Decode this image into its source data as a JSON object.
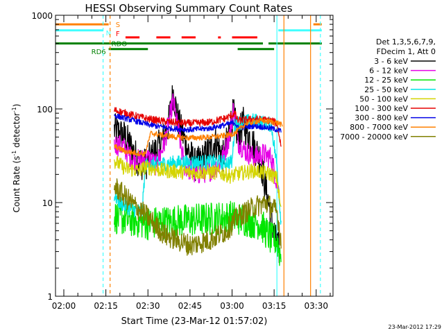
{
  "chart_data": {
    "type": "line",
    "title": "HESSI Observing Summary Count Rates",
    "ylabel_prefix": "Count Rate (s",
    "ylabel_sup1": "-1",
    "ylabel_mid": " detector",
    "ylabel_sup2": "-1",
    "ylabel_suffix": ")",
    "xlabel": "Start Time (23-Mar-12 01:57:02)",
    "footer_date": "23-Mar-2012 17:29",
    "yscale": "log",
    "ylim": [
      1,
      1000
    ],
    "xlim": [
      "01:57:02",
      "03:36:00"
    ],
    "xticks": [
      "02:00",
      "02:15",
      "02:30",
      "02:45",
      "03:00",
      "03:15",
      "03:30"
    ],
    "yticks": [
      "1",
      "10",
      "100",
      "1000"
    ],
    "legend": {
      "placement": "right",
      "header": [
        "Det 1,3,5,6,7,9,",
        "FDecim 1, Att 0"
      ],
      "entries": [
        {
          "label": "3 - 6 keV",
          "color": "#000000"
        },
        {
          "label": "6 - 12 keV",
          "color": "#e600e6"
        },
        {
          "label": "12 - 25 keV",
          "color": "#00e600"
        },
        {
          "label": "25 - 50 keV",
          "color": "#00e6e6"
        },
        {
          "label": "50 - 100 keV",
          "color": "#d4d400"
        },
        {
          "label": "100 - 300 keV",
          "color": "#e60000"
        },
        {
          "label": "300 - 800 keV",
          "color": "#0000e6"
        },
        {
          "label": "800 - 7000 keV",
          "color": "#ff8000"
        },
        {
          "label": "7000 - 20000 keV",
          "color": "#808000"
        }
      ]
    },
    "flags": [
      {
        "label": "S",
        "color": "#ff8000",
        "level": 800,
        "segments": [
          [
            "01:57:00",
            "02:16:00"
          ],
          [
            "03:29:00",
            "03:32:00"
          ]
        ]
      },
      {
        "label": "N",
        "color": "#40ffff",
        "level": 690,
        "segments": [
          [
            "01:57:00",
            "02:14:00"
          ],
          [
            "03:16:30",
            "03:32:00"
          ]
        ]
      },
      {
        "label": "F",
        "color": "#ff0000",
        "level": 580,
        "segments": [
          [
            "02:22:00",
            "02:27:00"
          ],
          [
            "02:33:00",
            "02:38:00"
          ],
          [
            "02:42:00",
            "02:47:00"
          ],
          [
            "02:55:00",
            "02:56:00"
          ],
          [
            "03:00:00",
            "03:09:00"
          ]
        ]
      },
      {
        "label": "RDO",
        "color": "#008000",
        "level": 500,
        "segments": [
          [
            "01:57:00",
            "03:11:00"
          ],
          [
            "03:13:00",
            "03:32:00"
          ]
        ]
      },
      {
        "label": "RD6",
        "color": "#008000",
        "level": 435,
        "segments": [
          [
            "02:16:00",
            "02:30:00"
          ],
          [
            "03:02:00",
            "03:15:00"
          ]
        ]
      }
    ],
    "vlines": [
      {
        "time": "02:14:00",
        "color": "#40ffff",
        "style": "dashed"
      },
      {
        "time": "02:16:30",
        "color": "#ff8000",
        "style": "dashed"
      },
      {
        "time": "03:16:00",
        "color": "#40ffff",
        "style": "solid"
      },
      {
        "time": "03:28:00",
        "color": "#ff8000",
        "style": "solid"
      },
      {
        "time": "03:31:30",
        "color": "#40ffff",
        "style": "dashed"
      },
      {
        "time": "03:18:30",
        "color": "#ff8000",
        "style": "solid"
      }
    ],
    "series": [
      {
        "name": "3 - 6 keV",
        "color": "#000000",
        "noise": 0.18,
        "points": [
          [
            "02:18:00",
            60
          ],
          [
            "02:22:00",
            50
          ],
          [
            "02:26:00",
            30
          ],
          [
            "02:28:30",
            25
          ],
          [
            "02:31:00",
            30
          ],
          [
            "02:34:00",
            40
          ],
          [
            "02:37:00",
            60
          ],
          [
            "02:39:00",
            150
          ],
          [
            "02:41:00",
            70
          ],
          [
            "02:44:00",
            38
          ],
          [
            "02:47:00",
            25
          ],
          [
            "02:50:00",
            30
          ],
          [
            "02:54:00",
            45
          ],
          [
            "02:57:00",
            30
          ],
          [
            "02:59:00",
            60
          ],
          [
            "03:00:30",
            90
          ],
          [
            "03:02:00",
            50
          ],
          [
            "03:04:00",
            70
          ],
          [
            "03:07:00",
            45
          ],
          [
            "03:10:00",
            30
          ],
          [
            "03:13:00",
            10
          ],
          [
            "03:15:30",
            4
          ],
          [
            "03:17:00",
            3
          ]
        ]
      },
      {
        "name": "6 - 12 keV",
        "color": "#e600e6",
        "noise": 0.12,
        "points": [
          [
            "02:18:00",
            42
          ],
          [
            "02:21:00",
            40
          ],
          [
            "02:24:00",
            30
          ],
          [
            "02:27:00",
            28
          ],
          [
            "02:30:00",
            30
          ],
          [
            "02:33:00",
            25
          ],
          [
            "02:36:00",
            45
          ],
          [
            "02:39:00",
            120
          ],
          [
            "02:41:00",
            55
          ],
          [
            "02:43:00",
            25
          ],
          [
            "02:47:00",
            20
          ],
          [
            "02:52:00",
            22
          ],
          [
            "02:56:00",
            26
          ],
          [
            "02:59:00",
            50
          ],
          [
            "03:00:30",
            100
          ],
          [
            "03:02:00",
            45
          ],
          [
            "03:05:00",
            35
          ],
          [
            "03:08:00",
            30
          ],
          [
            "03:11:00",
            33
          ],
          [
            "03:14:00",
            30
          ],
          [
            "03:17:00",
            12
          ]
        ]
      },
      {
        "name": "12 - 25 keV",
        "color": "#00e600",
        "noise": 0.18,
        "points": [
          [
            "02:18:00",
            7
          ],
          [
            "02:30:00",
            6
          ],
          [
            "02:45:00",
            6.5
          ],
          [
            "03:00:00",
            7
          ],
          [
            "03:10:00",
            6
          ],
          [
            "03:14:00",
            4
          ],
          [
            "03:16:00",
            4
          ],
          [
            "03:17:30",
            2.5
          ]
        ]
      },
      {
        "name": "25 - 50 keV",
        "color": "#00e6e6",
        "noise": 0.08,
        "points": [
          [
            "02:18:00",
            12
          ],
          [
            "02:20:00",
            10
          ],
          [
            "02:24:00",
            8.5
          ],
          [
            "02:28:00",
            8
          ],
          [
            "02:29:00",
            25
          ],
          [
            "02:35:00",
            26
          ],
          [
            "02:45:00",
            27
          ],
          [
            "02:55:00",
            27
          ],
          [
            "03:00:00",
            27
          ],
          [
            "03:01:00",
            70
          ],
          [
            "03:08:00",
            75
          ],
          [
            "03:14:00",
            68
          ],
          [
            "03:16:00",
            25
          ],
          [
            "03:17:30",
            6
          ]
        ]
      },
      {
        "name": "50 - 100 keV",
        "color": "#d4d400",
        "noise": 0.08,
        "points": [
          [
            "02:18:00",
            28
          ],
          [
            "02:22:00",
            23
          ],
          [
            "02:27:00",
            22
          ],
          [
            "02:29:00",
            24
          ],
          [
            "02:35:00",
            22
          ],
          [
            "02:45:00",
            21
          ],
          [
            "02:55:00",
            21
          ],
          [
            "03:00:00",
            19
          ],
          [
            "03:01:00",
            20
          ],
          [
            "03:08:00",
            22
          ],
          [
            "03:14:00",
            20
          ],
          [
            "03:16:00",
            18
          ],
          [
            "03:17:30",
            8
          ]
        ]
      },
      {
        "name": "100 - 300 keV",
        "color": "#e60000",
        "noise": 0.04,
        "points": [
          [
            "02:18:00",
            97
          ],
          [
            "02:25:00",
            85
          ],
          [
            "02:30:00",
            78
          ],
          [
            "02:38:00",
            72
          ],
          [
            "02:45:00",
            70
          ],
          [
            "02:52:00",
            72
          ],
          [
            "02:58:00",
            80
          ],
          [
            "03:01:00",
            90
          ],
          [
            "03:02:00",
            75
          ],
          [
            "03:08:00",
            78
          ],
          [
            "03:14:00",
            75
          ],
          [
            "03:16:00",
            70
          ],
          [
            "03:17:30",
            40
          ]
        ]
      },
      {
        "name": "300 - 800 keV",
        "color": "#0000e6",
        "noise": 0.03,
        "points": [
          [
            "02:18:00",
            85
          ],
          [
            "02:25:00",
            75
          ],
          [
            "02:30:00",
            68
          ],
          [
            "02:38:00",
            62
          ],
          [
            "02:45:00",
            60
          ],
          [
            "02:52:00",
            62
          ],
          [
            "02:58:00",
            68
          ],
          [
            "03:01:00",
            72
          ],
          [
            "03:02:00",
            63
          ],
          [
            "03:08:00",
            66
          ],
          [
            "03:14:00",
            62
          ],
          [
            "03:16:00",
            60
          ],
          [
            "03:17:30",
            58
          ]
        ]
      },
      {
        "name": "800 - 7000 keV",
        "color": "#ff8000",
        "noise": 0.03,
        "points": [
          [
            "02:18:00",
            40
          ],
          [
            "02:22:00",
            35
          ],
          [
            "02:29:00",
            33
          ],
          [
            "02:31:00",
            55
          ],
          [
            "02:40:00",
            50
          ],
          [
            "02:45:00",
            49
          ],
          [
            "02:52:00",
            50
          ],
          [
            "02:58:00",
            52
          ],
          [
            "03:01:00",
            55
          ],
          [
            "03:05:00",
            70
          ],
          [
            "03:10:00",
            75
          ],
          [
            "03:14:00",
            73
          ],
          [
            "03:17:00",
            70
          ],
          [
            "03:18:00",
            65
          ]
        ]
      },
      {
        "name": "7000 - 20000 keV",
        "color": "#808000",
        "noise": 0.12,
        "points": [
          [
            "02:18:00",
            15
          ],
          [
            "02:24:00",
            10
          ],
          [
            "02:30:00",
            7
          ],
          [
            "02:36:00",
            4.5
          ],
          [
            "02:45:00",
            3.5
          ],
          [
            "02:52:00",
            4
          ],
          [
            "02:58:00",
            5
          ],
          [
            "03:02:00",
            7
          ],
          [
            "03:08:00",
            9
          ],
          [
            "03:12:00",
            10
          ],
          [
            "03:16:00",
            8
          ],
          [
            "03:17:30",
            4
          ]
        ]
      }
    ]
  }
}
